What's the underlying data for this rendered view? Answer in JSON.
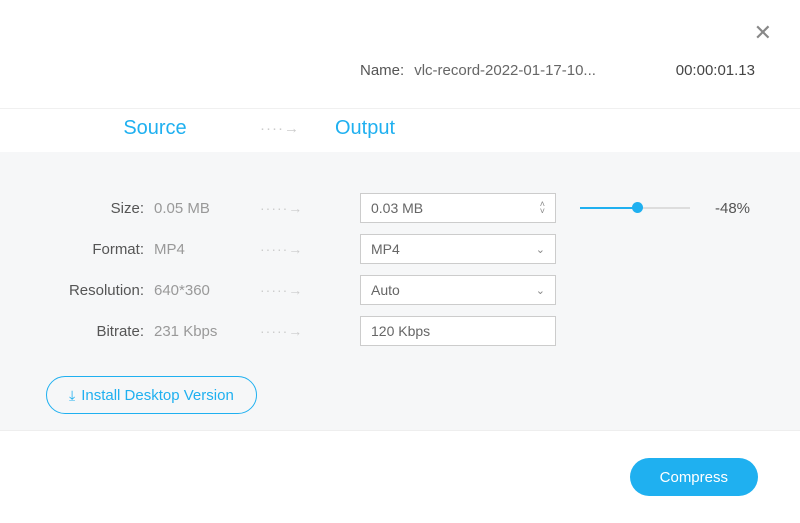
{
  "colors": {
    "accent": "#1fb0f0",
    "body_bg": "#f6f7f8",
    "muted_text": "#999999",
    "border": "#cccccc"
  },
  "close_glyph": "✕",
  "name": {
    "label": "Name:",
    "value": "vlc-record-2022-01-17-10...",
    "time": "00:00:01.13"
  },
  "headers": {
    "source": "Source",
    "output": "Output",
    "arrow": "····→"
  },
  "rows": {
    "size": {
      "label": "Size:",
      "source": "0.05 MB",
      "output": "0.03 MB",
      "slider_pct": 52,
      "delta_text": "-48%"
    },
    "format": {
      "label": "Format:",
      "source": "MP4",
      "output": "MP4"
    },
    "resolution": {
      "label": "Resolution:",
      "source": "640*360",
      "output": "Auto"
    },
    "bitrate": {
      "label": "Bitrate:",
      "source": "231 Kbps",
      "output": "120 Kbps"
    },
    "arrow": "·····→"
  },
  "install_button": "Install Desktop Version",
  "compress_button": "Compress"
}
